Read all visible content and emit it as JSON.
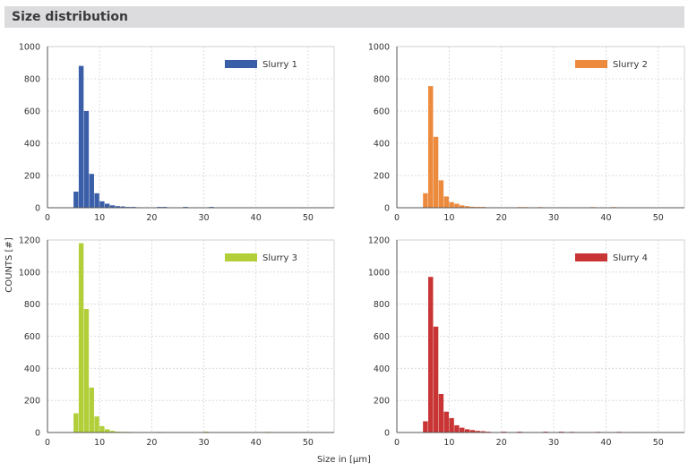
{
  "page": {
    "title": "Size distribution"
  },
  "shared": {
    "ylabel": "COUNTS [#]",
    "xlabel": "Size in [µm]"
  },
  "chart_data": [
    {
      "type": "bar",
      "series_name": "Slurry 1",
      "color": "#3a5fa8",
      "xlim": [
        0,
        55
      ],
      "ylim": [
        0,
        1000
      ],
      "xticks": [
        0,
        10,
        20,
        30,
        40,
        50
      ],
      "yticks": [
        0,
        200,
        400,
        600,
        800,
        1000
      ],
      "grid": true,
      "legend": "top-right",
      "bin_width": 1,
      "x": [
        5,
        6,
        7,
        8,
        9,
        10,
        11,
        12,
        13,
        14,
        15,
        16,
        17,
        21,
        22,
        26,
        31
      ],
      "values": [
        100,
        880,
        600,
        210,
        90,
        40,
        25,
        15,
        10,
        8,
        5,
        5,
        3,
        5,
        5,
        5,
        5
      ]
    },
    {
      "type": "bar",
      "series_name": "Slurry 2",
      "color": "#ec8a3e",
      "xlim": [
        0,
        55
      ],
      "ylim": [
        0,
        1000
      ],
      "xticks": [
        0,
        10,
        20,
        30,
        40,
        50
      ],
      "yticks": [
        0,
        200,
        400,
        600,
        800,
        1000
      ],
      "grid": true,
      "legend": "top-right",
      "bin_width": 1,
      "x": [
        5,
        6,
        7,
        8,
        9,
        10,
        11,
        12,
        13,
        14,
        15,
        16,
        17,
        19,
        23,
        24,
        27,
        31,
        37,
        41
      ],
      "values": [
        90,
        755,
        440,
        170,
        70,
        35,
        25,
        15,
        10,
        6,
        5,
        5,
        3,
        3,
        4,
        4,
        4,
        3,
        4,
        4
      ]
    },
    {
      "type": "bar",
      "series_name": "Slurry 3",
      "color": "#b2cf3a",
      "xlim": [
        0,
        55
      ],
      "ylim": [
        0,
        1200
      ],
      "xticks": [
        0,
        10,
        20,
        30,
        40,
        50
      ],
      "yticks": [
        0,
        200,
        400,
        600,
        800,
        1000,
        1200
      ],
      "grid": true,
      "legend": "top-right",
      "bin_width": 1,
      "x": [
        5,
        6,
        7,
        8,
        9,
        10,
        11,
        12,
        13,
        14,
        15,
        16,
        21,
        30,
        37,
        42
      ],
      "values": [
        120,
        1180,
        770,
        280,
        100,
        40,
        20,
        10,
        5,
        4,
        4,
        3,
        4,
        5,
        3,
        4
      ]
    },
    {
      "type": "bar",
      "series_name": "Slurry 4",
      "color": "#c93434",
      "xlim": [
        0,
        55
      ],
      "ylim": [
        0,
        1200
      ],
      "xticks": [
        0,
        10,
        20,
        30,
        40,
        50
      ],
      "yticks": [
        0,
        200,
        400,
        600,
        800,
        1000,
        1200
      ],
      "grid": true,
      "legend": "top-right",
      "bin_width": 1,
      "x": [
        5,
        6,
        7,
        8,
        9,
        10,
        11,
        12,
        13,
        14,
        15,
        16,
        17,
        20,
        23,
        28,
        31,
        33,
        38,
        42,
        45
      ],
      "values": [
        70,
        970,
        660,
        240,
        130,
        90,
        45,
        30,
        20,
        15,
        10,
        8,
        5,
        5,
        5,
        5,
        5,
        4,
        4,
        4,
        3
      ]
    }
  ]
}
